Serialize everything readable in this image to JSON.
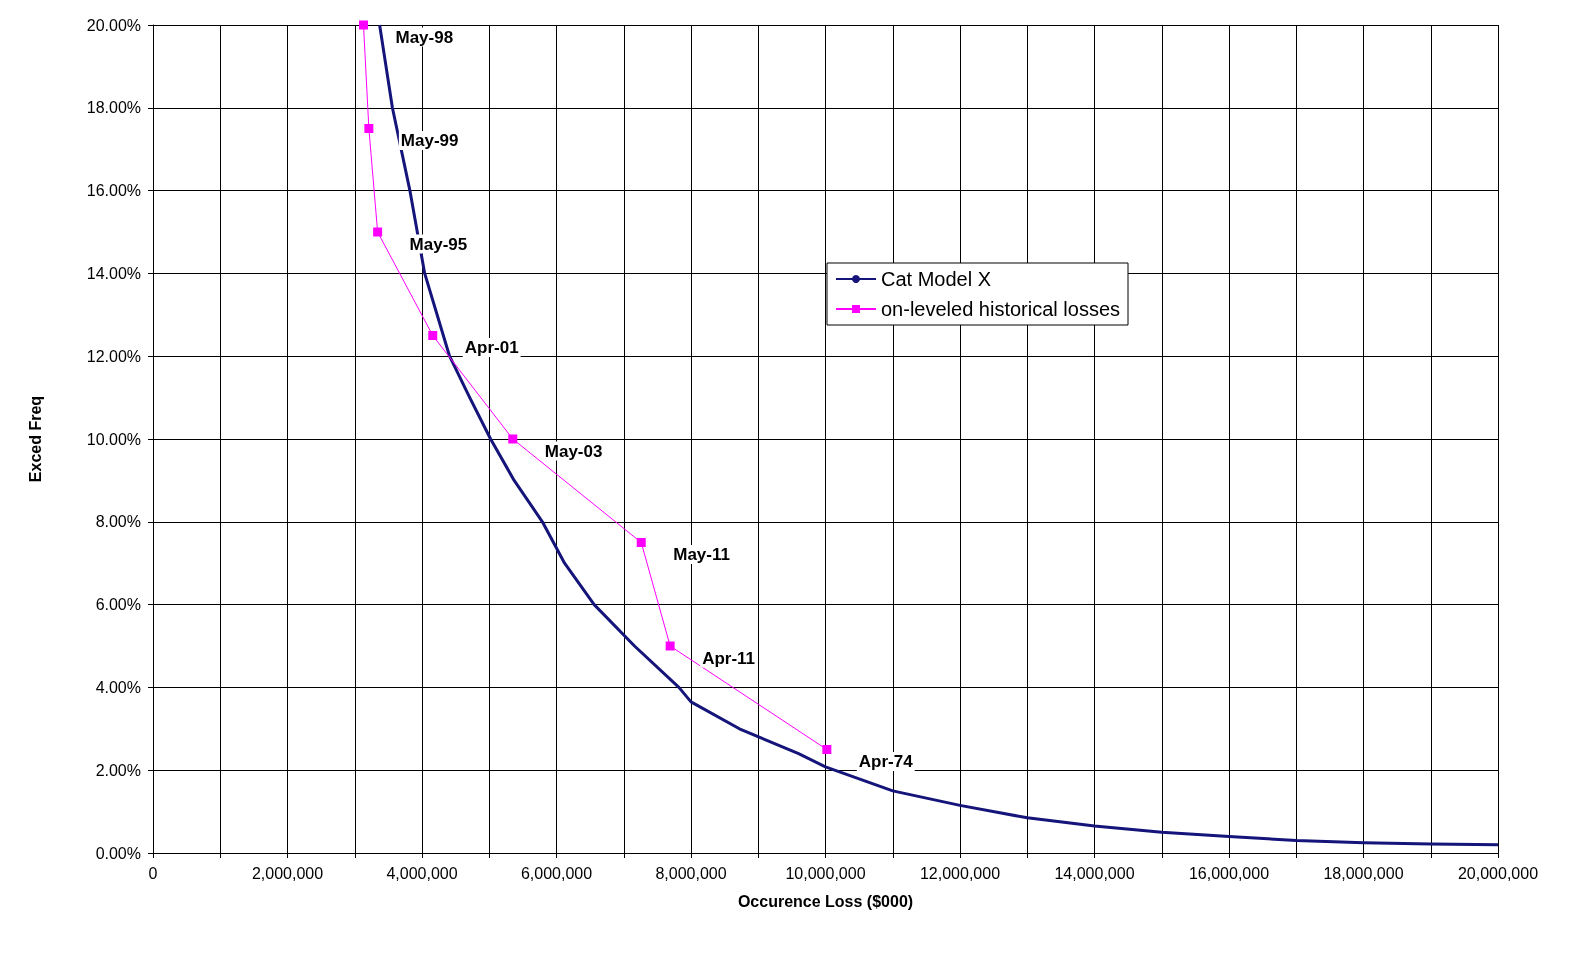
{
  "chart_data": {
    "type": "line",
    "xlabel": "Occurence Loss ($000)",
    "ylabel": "Exced Freq",
    "xlim": [
      0,
      20000000
    ],
    "ylim": [
      0,
      20
    ],
    "xticks": [
      0,
      {
        "value": 1000000,
        "label": null
      },
      {
        "value": 2000000,
        "label": "2,000,000"
      },
      {
        "value": 3000000,
        "label": null
      },
      {
        "value": 4000000,
        "label": "4,000,000"
      },
      {
        "value": 5000000,
        "label": null
      },
      {
        "value": 6000000,
        "label": "6,000,000"
      },
      {
        "value": 7000000,
        "label": null
      },
      {
        "value": 8000000,
        "label": "8,000,000"
      },
      {
        "value": 9000000,
        "label": null
      },
      {
        "value": 10000000,
        "label": "10,000,000"
      },
      {
        "value": 11000000,
        "label": null
      },
      {
        "value": 12000000,
        "label": "12,000,000"
      },
      {
        "value": 13000000,
        "label": null
      },
      {
        "value": 14000000,
        "label": "14,000,000"
      },
      {
        "value": 15000000,
        "label": null
      },
      {
        "value": 16000000,
        "label": "16,000,000"
      },
      {
        "value": 17000000,
        "label": null
      },
      {
        "value": 18000000,
        "label": "18,000,000"
      },
      {
        "value": 19000000,
        "label": null
      },
      {
        "value": 20000000,
        "label": "20,000,000"
      }
    ],
    "yticks": [
      {
        "value": 0,
        "label": "0.00%"
      },
      {
        "value": 2,
        "label": "2.00%"
      },
      {
        "value": 4,
        "label": "4.00%"
      },
      {
        "value": 6,
        "label": "6.00%"
      },
      {
        "value": 8,
        "label": "8.00%"
      },
      {
        "value": 10,
        "label": "10.00%"
      },
      {
        "value": 12,
        "label": "12.00%"
      },
      {
        "value": 14,
        "label": "14.00%"
      },
      {
        "value": 16,
        "label": "16.00%"
      },
      {
        "value": 18,
        "label": "18.00%"
      },
      {
        "value": 20,
        "label": "20.00%"
      }
    ],
    "grid": true,
    "legend": "top right",
    "series": [
      {
        "name": "Cat Model X",
        "color": "#14147a",
        "marker": "none",
        "x": [
          3370000,
          3560000,
          3820000,
          4040000,
          4410000,
          4710000,
          5020000,
          5370000,
          5790000,
          6120000,
          6560000,
          7160000,
          7820000,
          8000000,
          8720000,
          9600000,
          10000000,
          11000000,
          12000000,
          13000000,
          14000000,
          15000000,
          16000000,
          17000000,
          18000000,
          19000000,
          20000000
        ],
        "values": [
          20,
          18,
          16,
          14,
          12,
          11,
          10,
          9,
          8,
          7,
          6,
          5,
          4,
          3.65,
          3,
          2.4,
          2.08,
          1.5,
          1.15,
          0.85,
          0.65,
          0.5,
          0.4,
          0.3,
          0.25,
          0.22,
          0.2
        ]
      },
      {
        "name": "on-leveled historical losses",
        "color": "#ff00ff",
        "marker": "square",
        "x": [
          3130000,
          3210000,
          3340000,
          4160000,
          5350000,
          7260000,
          7690000,
          10020000
        ],
        "values": [
          20,
          17.5,
          15,
          12.5,
          10,
          7.5,
          5,
          2.5
        ]
      }
    ],
    "annotations": [
      {
        "text": "May-98",
        "x": 3130000,
        "y": 20
      },
      {
        "text": "May-99",
        "x": 3210000,
        "y": 17.5
      },
      {
        "text": "May-95",
        "x": 3340000,
        "y": 15
      },
      {
        "text": "Apr-01",
        "x": 4160000,
        "y": 12.5
      },
      {
        "text": "May-03",
        "x": 5350000,
        "y": 10
      },
      {
        "text": "May-11",
        "x": 7260000,
        "y": 7.5
      },
      {
        "text": "Apr-11",
        "x": 7690000,
        "y": 5
      },
      {
        "text": "Apr-74",
        "x": 10020000,
        "y": 2.5
      }
    ]
  }
}
